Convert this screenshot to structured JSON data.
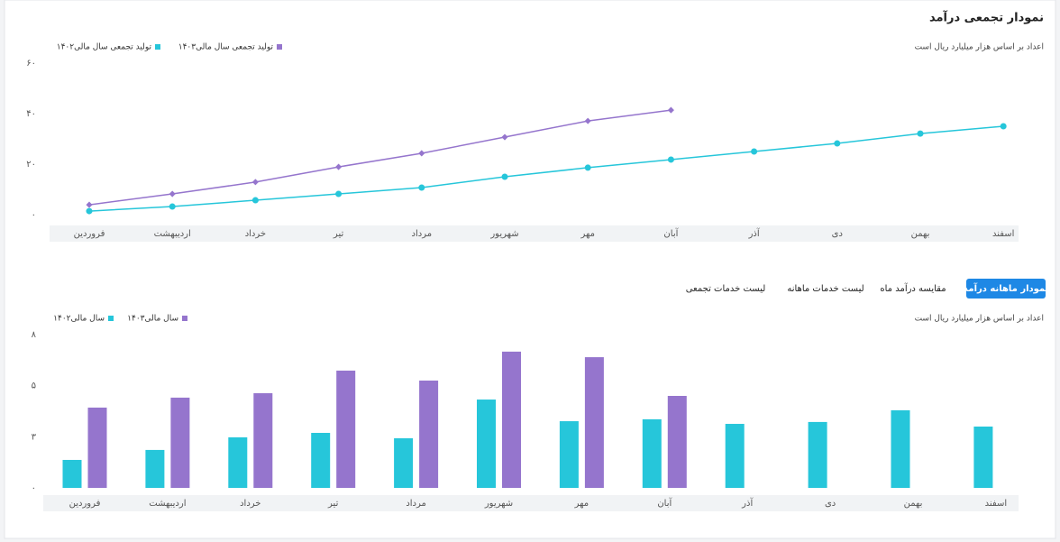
{
  "tabs": [
    "نمودار ماهانه درآمد",
    "مقایسه درآمد ماه",
    "لیست خدمات ماهانه",
    "لیست خدمات تجمعی"
  ],
  "chart_data": [
    {
      "type": "line",
      "title": "نمودار تجمعی درآمد",
      "subtitle": "اعداد بر اساس هزار میلیارد ریال است",
      "categories": [
        "فروردین",
        "اردیبهشت",
        "خرداد",
        "تیر",
        "مرداد",
        "شهریور",
        "مهر",
        "آبان",
        "آذر",
        "دی",
        "بهمن",
        "اسفند"
      ],
      "series": [
        {
          "name": "تولید تجمعی سال مالی۱۴۰۲",
          "color": "#26c6da",
          "values": [
            1.4,
            3.2,
            5.7,
            8.2,
            10.7,
            15.0,
            18.6,
            21.8,
            25.0,
            28.2,
            32.1,
            35.0
          ]
        },
        {
          "name": "تولید تجمعی سال مالی۱۴۰۳",
          "color": "#9575cd",
          "values": [
            3.9,
            8.2,
            12.9,
            18.9,
            24.3,
            30.7,
            37.1,
            41.4,
            null,
            null,
            null,
            null
          ]
        }
      ],
      "ylim": [
        0,
        60
      ],
      "yticks": [
        {
          "value": 0,
          "label": "۰"
        },
        {
          "value": 20,
          "label": "۲۰"
        },
        {
          "value": 40,
          "label": "۴۰"
        },
        {
          "value": 60,
          "label": "۶۰"
        }
      ],
      "grid": false,
      "legend": "top-left"
    },
    {
      "type": "bar",
      "subtitle": "اعداد بر اساس هزار میلیارد ریال است",
      "categories": [
        "فروردین",
        "اردیبهشت",
        "خرداد",
        "تیر",
        "مرداد",
        "شهریور",
        "مهر",
        "آبان",
        "آذر",
        "دی",
        "بهمن",
        "اسفند"
      ],
      "series": [
        {
          "name": "سال مالی۱۴۰۲",
          "color": "#26c6da",
          "values": [
            1.46,
            1.98,
            2.64,
            2.87,
            2.59,
            4.61,
            3.48,
            3.58,
            3.34,
            3.44,
            4.05,
            3.2
          ]
        },
        {
          "name": "سال مالی۱۴۰۳",
          "color": "#9575cd",
          "values": [
            4.19,
            4.71,
            4.94,
            6.12,
            5.6,
            7.11,
            6.82,
            4.8,
            null,
            null,
            null,
            null
          ]
        }
      ],
      "ylim": [
        0,
        8
      ],
      "yticks": [
        {
          "value": 0,
          "label": "۰"
        },
        {
          "value": 2.67,
          "label": "۳"
        },
        {
          "value": 5.33,
          "label": "۵"
        },
        {
          "value": 8,
          "label": "۸"
        }
      ],
      "grid": false,
      "legend": "top-left"
    }
  ]
}
